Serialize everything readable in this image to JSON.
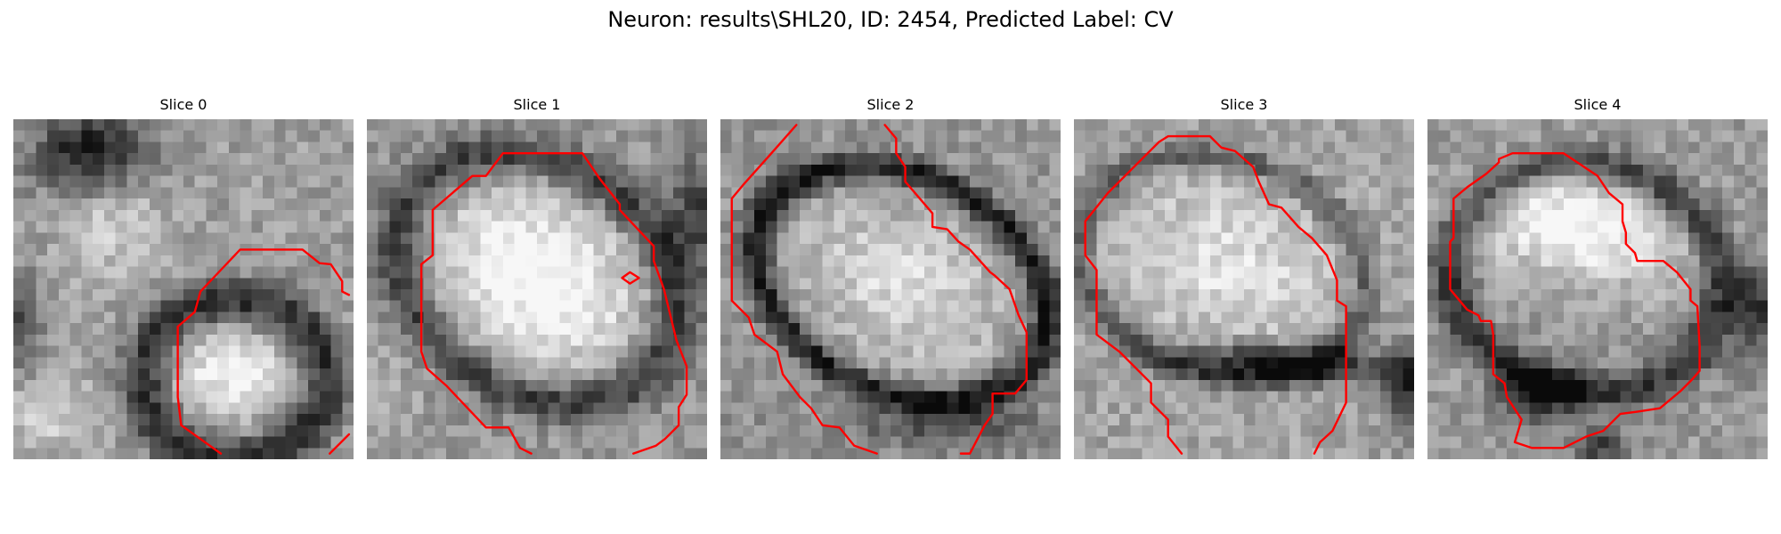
{
  "figure": {
    "title": "Neuron: results\\SHL20, ID: 2454, Predicted Label: CV"
  },
  "colors": {
    "contour": "#ff0000",
    "background": "#ffffff",
    "text": "#000000"
  },
  "colormap": "grayscale",
  "image_grid": "30x30",
  "slices": [
    {
      "label": "Slice 0"
    },
    {
      "label": "Slice 1"
    },
    {
      "label": "Slice 2"
    },
    {
      "label": "Slice 3"
    },
    {
      "label": "Slice 4"
    }
  ]
}
